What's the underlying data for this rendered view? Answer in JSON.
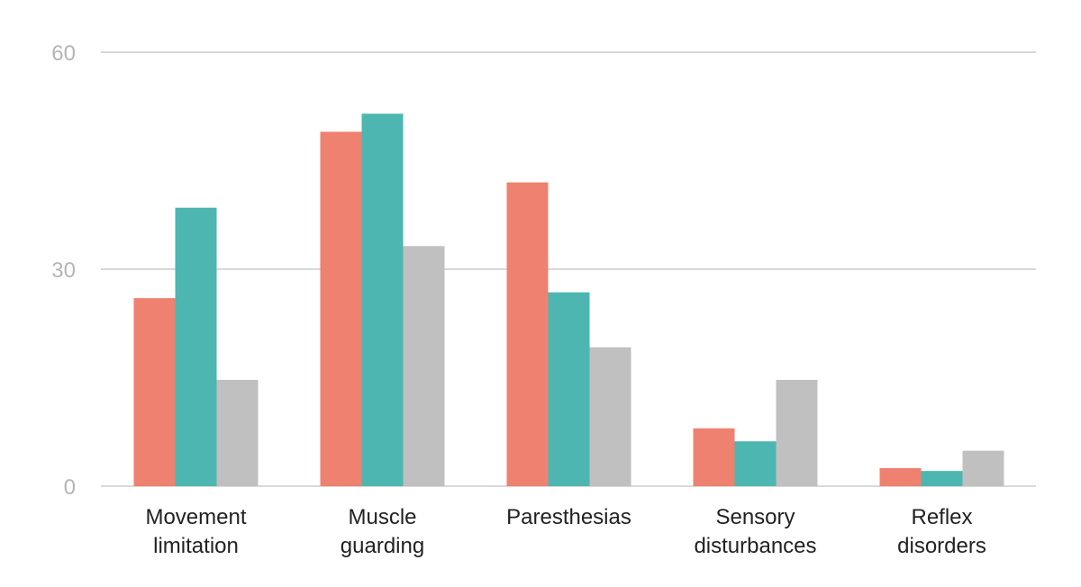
{
  "chart_data": {
    "type": "bar",
    "categories": [
      [
        "Movement",
        "limitation"
      ],
      [
        "Muscle",
        "guarding"
      ],
      [
        "Paresthesias"
      ],
      [
        "Sensory",
        "disturbances"
      ],
      [
        "Reflex",
        "disorders"
      ]
    ],
    "series": [
      {
        "values": [
          26,
          49,
          42,
          8,
          2.5
        ],
        "color": "#ef8170"
      },
      {
        "values": [
          38.5,
          51.5,
          26.8,
          6.2,
          2.1
        ],
        "color": "#4db6b0"
      },
      {
        "values": [
          14.7,
          33.2,
          19.2,
          14.7,
          4.9
        ],
        "color": "#c0c0c0"
      }
    ],
    "yticks": [
      0,
      30,
      60
    ],
    "ylim": [
      0,
      60
    ],
    "grid": true,
    "legend": "none"
  }
}
